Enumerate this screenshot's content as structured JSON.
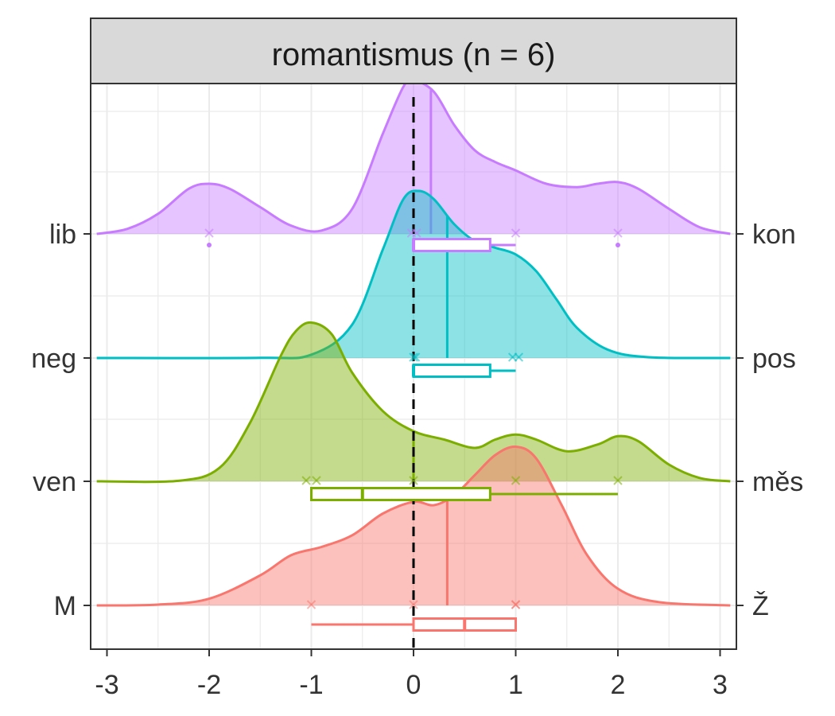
{
  "chart_data": {
    "type": "ridgeline",
    "title": "romantismus (n = 6)",
    "xlim": [
      -3.1,
      3.1
    ],
    "x_ticks": [
      -3,
      -2,
      -1,
      0,
      1,
      2,
      3
    ],
    "x_tick_labels": [
      "-3",
      "-2",
      "-1",
      "0",
      "1",
      "2",
      "3"
    ],
    "reference_line_x": 0,
    "grid": true,
    "series": [
      {
        "left_label": "M",
        "right_label": "Ž",
        "color": "#F8766D",
        "points": [
          -1,
          0,
          1,
          1
        ],
        "mean": 0.33,
        "box": {
          "min": -1,
          "q1": 0,
          "median": 0.5,
          "q3": 1,
          "max": 1
        },
        "outliers": [],
        "density": [
          [
            -3.1,
            0
          ],
          [
            -2.5,
            0.005
          ],
          [
            -2.0,
            0.04
          ],
          [
            -1.5,
            0.18
          ],
          [
            -1.2,
            0.3
          ],
          [
            -0.9,
            0.35
          ],
          [
            -0.6,
            0.42
          ],
          [
            -0.3,
            0.55
          ],
          [
            0.0,
            0.62
          ],
          [
            0.2,
            0.6
          ],
          [
            0.4,
            0.66
          ],
          [
            0.6,
            0.78
          ],
          [
            0.8,
            0.9
          ],
          [
            1.0,
            0.95
          ],
          [
            1.2,
            0.88
          ],
          [
            1.45,
            0.6
          ],
          [
            1.7,
            0.3
          ],
          [
            2.0,
            0.1
          ],
          [
            2.4,
            0.02
          ],
          [
            3.1,
            0
          ]
        ]
      },
      {
        "left_label": "ven",
        "right_label": "měs",
        "color": "#7CAE00",
        "points": [
          -1.05,
          -0.95,
          0,
          1,
          2
        ],
        "mean": 0,
        "box": {
          "min": -1,
          "q1": -1,
          "median": -0.5,
          "q3": 0.75,
          "max": 2
        },
        "outliers": [],
        "density": [
          [
            -3.1,
            0
          ],
          [
            -2.3,
            0.003
          ],
          [
            -1.9,
            0.08
          ],
          [
            -1.6,
            0.35
          ],
          [
            -1.3,
            0.75
          ],
          [
            -1.15,
            0.9
          ],
          [
            -1.0,
            0.95
          ],
          [
            -0.8,
            0.88
          ],
          [
            -0.6,
            0.65
          ],
          [
            -0.3,
            0.42
          ],
          [
            0.0,
            0.3
          ],
          [
            0.3,
            0.25
          ],
          [
            0.6,
            0.2
          ],
          [
            0.8,
            0.25
          ],
          [
            1.0,
            0.28
          ],
          [
            1.2,
            0.25
          ],
          [
            1.5,
            0.18
          ],
          [
            1.8,
            0.22
          ],
          [
            2.0,
            0.27
          ],
          [
            2.2,
            0.24
          ],
          [
            2.5,
            0.1
          ],
          [
            2.8,
            0.02
          ],
          [
            3.1,
            0
          ]
        ]
      },
      {
        "left_label": "neg",
        "right_label": "pos",
        "color": "#00BFC4",
        "points": [
          0,
          0.02,
          0.97,
          1.03
        ],
        "mean": 0.33,
        "box": {
          "min": 0,
          "q1": 0,
          "median": 0,
          "q3": 0.75,
          "max": 1
        },
        "outliers": [],
        "density": [
          [
            -3.1,
            0
          ],
          [
            -1.5,
            0.001
          ],
          [
            -1.0,
            0.02
          ],
          [
            -0.6,
            0.2
          ],
          [
            -0.3,
            0.65
          ],
          [
            -0.1,
            0.95
          ],
          [
            0.05,
            1.0
          ],
          [
            0.2,
            0.95
          ],
          [
            0.4,
            0.8
          ],
          [
            0.6,
            0.7
          ],
          [
            0.8,
            0.66
          ],
          [
            1.0,
            0.62
          ],
          [
            1.2,
            0.52
          ],
          [
            1.4,
            0.35
          ],
          [
            1.6,
            0.18
          ],
          [
            1.9,
            0.05
          ],
          [
            2.3,
            0.005
          ],
          [
            3.1,
            0
          ]
        ]
      },
      {
        "left_label": "lib",
        "right_label": "kon",
        "color": "#C77CFF",
        "points": [
          -2,
          -0.02,
          0.03,
          1,
          2
        ],
        "mean": 0.17,
        "box": {
          "min": 0,
          "q1": 0,
          "median": 0,
          "q3": 0.75,
          "max": 1
        },
        "outliers": [
          -2,
          2
        ],
        "density": [
          [
            -3.1,
            0
          ],
          [
            -2.8,
            0.03
          ],
          [
            -2.5,
            0.12
          ],
          [
            -2.2,
            0.27
          ],
          [
            -2.0,
            0.3
          ],
          [
            -1.8,
            0.27
          ],
          [
            -1.5,
            0.16
          ],
          [
            -1.2,
            0.05
          ],
          [
            -0.9,
            0.02
          ],
          [
            -0.6,
            0.15
          ],
          [
            -0.3,
            0.6
          ],
          [
            -0.1,
            0.88
          ],
          [
            0.0,
            0.92
          ],
          [
            0.2,
            0.85
          ],
          [
            0.4,
            0.65
          ],
          [
            0.6,
            0.5
          ],
          [
            0.8,
            0.43
          ],
          [
            1.0,
            0.38
          ],
          [
            1.3,
            0.3
          ],
          [
            1.6,
            0.28
          ],
          [
            1.8,
            0.3
          ],
          [
            2.0,
            0.31
          ],
          [
            2.2,
            0.27
          ],
          [
            2.5,
            0.15
          ],
          [
            2.8,
            0.04
          ],
          [
            3.1,
            0
          ]
        ]
      }
    ]
  }
}
